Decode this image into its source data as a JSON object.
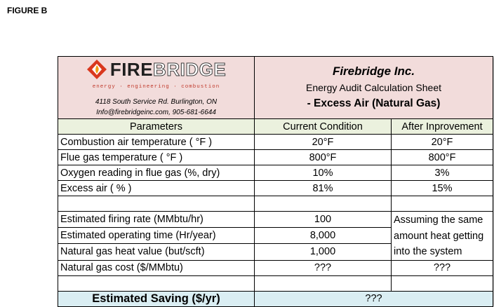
{
  "figure_label": "FIGURE B",
  "logo": {
    "word_part1": "FIRE",
    "word_part2": "BRIDGE",
    "tagline": "energy · engineering · combustion"
  },
  "company": {
    "address": "4118 South Service Rd. Burlington, ON",
    "contact": "Info@firebridgeinc.com, 905-681-6644",
    "name": "Firebridge Inc.",
    "sheet_title": "Energy Audit Calculation Sheet",
    "sheet_subtitle": "- Excess Air (Natural Gas)"
  },
  "columns": {
    "parameters": "Parameters",
    "current": "Current Condition",
    "after": "After Inprovement"
  },
  "rows_a": [
    {
      "label": "Combustion air temperature ( °F )",
      "current": "20°F",
      "after": "20°F"
    },
    {
      "label": "Flue gas temperature ( °F )",
      "current": "800°F",
      "after": "800°F"
    },
    {
      "label": "Oxygen reading in flue gas (%, dry)",
      "current": "10%",
      "after": "3%"
    },
    {
      "label": "Excess air ( % )",
      "current": "81%",
      "after": "15%"
    }
  ],
  "rows_b": [
    {
      "label": "Estimated firing rate (MMbtu/hr)",
      "current": "100"
    },
    {
      "label": "Estimated operating time (Hr/year)",
      "current": "8,000"
    },
    {
      "label": "Natural gas heat value (but/scft)",
      "current": "1,000"
    }
  ],
  "after_note": "Assuming the same amount heat getting into the system",
  "gas_cost": {
    "label": "Natural gas cost ($/MMbtu)",
    "current": "???",
    "after": "???"
  },
  "saving": {
    "label": "Estimated Saving  ($/yr)",
    "value": "???"
  },
  "colors": {
    "header_bg": "#f2dcdb",
    "columns_bg": "#ebf1de",
    "saving_bg": "#daeef3",
    "logo_red": "#d9381e"
  },
  "icons": {
    "logo_mark": "diamond-flame-icon"
  }
}
